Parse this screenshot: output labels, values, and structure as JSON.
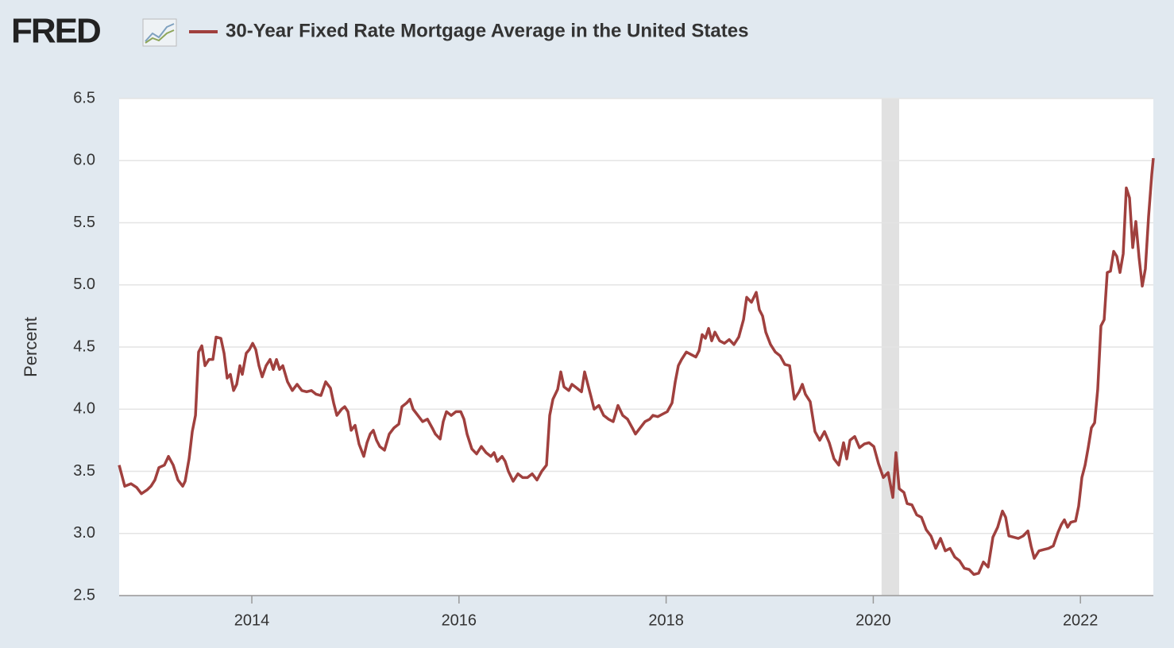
{
  "logo": "FRED",
  "chart_data": {
    "type": "line",
    "title": "30-Year Fixed Rate Mortgage Average in the United States",
    "ylabel": "Percent",
    "color": "#a0403e",
    "grid": true,
    "xlim": [
      2012.719,
      2022.704
    ],
    "xticks": [
      2014,
      2016,
      2018,
      2020,
      2022
    ],
    "ylim": [
      2.5,
      6.5
    ],
    "yticks": [
      2.5,
      {
        "value": 3,
        "label": "3.0"
      },
      3.5,
      {
        "value": 4,
        "label": "4.0"
      },
      4.5,
      {
        "value": 5,
        "label": "5.0"
      },
      5.5,
      {
        "value": 6,
        "label": "6.0"
      },
      6.5
    ],
    "recessions": [
      [
        2020.08,
        2020.25
      ]
    ],
    "x": [
      2012.719,
      2012.773,
      2012.834,
      2012.888,
      2012.934,
      2012.988,
      2013.026,
      2013.064,
      2013.103,
      2013.156,
      2013.195,
      2013.241,
      2013.287,
      2013.333,
      2013.356,
      2013.394,
      2013.425,
      2013.456,
      2013.486,
      2013.517,
      2013.548,
      2013.586,
      2013.624,
      2013.655,
      2013.701,
      2013.732,
      2013.762,
      2013.793,
      2013.824,
      2013.854,
      2013.885,
      2013.908,
      2013.946,
      2013.977,
      2014.008,
      2014.038,
      2014.069,
      2014.1,
      2014.138,
      2014.176,
      2014.207,
      2014.238,
      2014.268,
      2014.299,
      2014.345,
      2014.391,
      2014.437,
      2014.483,
      2014.529,
      2014.575,
      2014.621,
      2014.667,
      2014.713,
      2014.759,
      2014.79,
      2014.821,
      2014.867,
      2014.897,
      2014.928,
      2014.959,
      2014.997,
      2015.035,
      2015.081,
      2015.112,
      2015.143,
      2015.173,
      2015.204,
      2015.235,
      2015.281,
      2015.327,
      2015.373,
      2015.419,
      2015.449,
      2015.495,
      2015.526,
      2015.557,
      2015.603,
      2015.649,
      2015.695,
      2015.741,
      2015.772,
      2015.818,
      2015.848,
      2015.879,
      2015.925,
      2015.971,
      2016.017,
      2016.048,
      2016.078,
      2016.124,
      2016.17,
      2016.216,
      2016.262,
      2016.308,
      2016.339,
      2016.37,
      2016.416,
      2016.446,
      2016.477,
      2016.523,
      2016.569,
      2016.615,
      2016.661,
      2016.707,
      2016.753,
      2016.799,
      2016.845,
      2016.876,
      2016.907,
      2016.953,
      2016.983,
      2017.014,
      2017.06,
      2017.091,
      2017.137,
      2017.183,
      2017.213,
      2017.244,
      2017.275,
      2017.305,
      2017.351,
      2017.397,
      2017.443,
      2017.489,
      2017.535,
      2017.581,
      2017.627,
      2017.673,
      2017.704,
      2017.75,
      2017.796,
      2017.842,
      2017.873,
      2017.919,
      2017.965,
      2018.011,
      2018.057,
      2018.088,
      2018.118,
      2018.149,
      2018.195,
      2018.241,
      2018.287,
      2018.318,
      2018.348,
      2018.379,
      2018.41,
      2018.44,
      2018.471,
      2018.517,
      2018.563,
      2018.609,
      2018.655,
      2018.701,
      2018.747,
      2018.778,
      2018.824,
      2018.87,
      2018.9,
      2018.931,
      2018.962,
      2019.008,
      2019.054,
      2019.1,
      2019.146,
      2019.192,
      2019.238,
      2019.284,
      2019.315,
      2019.345,
      2019.391,
      2019.437,
      2019.483,
      2019.529,
      2019.575,
      2019.621,
      2019.667,
      2019.713,
      2019.744,
      2019.775,
      2019.821,
      2019.867,
      2019.913,
      2019.959,
      2020.005,
      2020.051,
      2020.097,
      2020.143,
      2020.189,
      2020.219,
      2020.25,
      2020.296,
      2020.327,
      2020.373,
      2020.419,
      2020.465,
      2020.511,
      2020.557,
      2020.603,
      2020.649,
      2020.695,
      2020.741,
      2020.787,
      2020.833,
      2020.879,
      2020.925,
      2020.971,
      2021.017,
      2021.063,
      2021.109,
      2021.155,
      2021.201,
      2021.247,
      2021.278,
      2021.309,
      2021.355,
      2021.401,
      2021.447,
      2021.493,
      2021.523,
      2021.554,
      2021.6,
      2021.646,
      2021.692,
      2021.738,
      2021.784,
      2021.815,
      2021.845,
      2021.876,
      2021.907,
      2021.953,
      2021.983,
      2022.014,
      2022.045,
      2022.075,
      2022.106,
      2022.137,
      2022.167,
      2022.198,
      2022.229,
      2022.259,
      2022.29,
      2022.321,
      2022.351,
      2022.382,
      2022.413,
      2022.443,
      2022.474,
      2022.505,
      2022.535,
      2022.566,
      2022.597,
      2022.627,
      2022.658,
      2022.689,
      2022.704
    ],
    "values": [
      3.55,
      3.38,
      3.4,
      3.37,
      3.32,
      3.35,
      3.38,
      3.43,
      3.53,
      3.55,
      3.62,
      3.55,
      3.43,
      3.38,
      3.42,
      3.6,
      3.82,
      3.95,
      4.46,
      4.51,
      4.35,
      4.4,
      4.4,
      4.58,
      4.57,
      4.45,
      4.25,
      4.28,
      4.15,
      4.2,
      4.35,
      4.28,
      4.45,
      4.48,
      4.53,
      4.48,
      4.35,
      4.26,
      4.35,
      4.4,
      4.32,
      4.4,
      4.32,
      4.35,
      4.22,
      4.15,
      4.2,
      4.15,
      4.14,
      4.15,
      4.12,
      4.11,
      4.22,
      4.17,
      4.05,
      3.95,
      4.0,
      4.02,
      3.98,
      3.83,
      3.87,
      3.72,
      3.62,
      3.73,
      3.8,
      3.83,
      3.75,
      3.7,
      3.67,
      3.8,
      3.85,
      3.88,
      4.02,
      4.05,
      4.08,
      4.0,
      3.95,
      3.9,
      3.92,
      3.85,
      3.8,
      3.76,
      3.9,
      3.98,
      3.95,
      3.98,
      3.98,
      3.92,
      3.8,
      3.68,
      3.64,
      3.7,
      3.65,
      3.62,
      3.65,
      3.58,
      3.62,
      3.58,
      3.5,
      3.42,
      3.48,
      3.45,
      3.45,
      3.48,
      3.43,
      3.5,
      3.55,
      3.95,
      4.08,
      4.16,
      4.3,
      4.18,
      4.15,
      4.2,
      4.17,
      4.14,
      4.3,
      4.2,
      4.1,
      4.0,
      4.03,
      3.95,
      3.92,
      3.9,
      4.03,
      3.95,
      3.92,
      3.85,
      3.8,
      3.85,
      3.9,
      3.92,
      3.95,
      3.94,
      3.96,
      3.98,
      4.05,
      4.22,
      4.35,
      4.4,
      4.46,
      4.44,
      4.42,
      4.47,
      4.6,
      4.57,
      4.65,
      4.55,
      4.62,
      4.55,
      4.53,
      4.56,
      4.52,
      4.58,
      4.72,
      4.9,
      4.86,
      4.94,
      4.8,
      4.75,
      4.62,
      4.52,
      4.46,
      4.43,
      4.36,
      4.35,
      4.08,
      4.14,
      4.2,
      4.12,
      4.06,
      3.82,
      3.75,
      3.82,
      3.73,
      3.6,
      3.55,
      3.73,
      3.6,
      3.75,
      3.78,
      3.69,
      3.72,
      3.73,
      3.7,
      3.56,
      3.45,
      3.49,
      3.29,
      3.65,
      3.36,
      3.33,
      3.24,
      3.23,
      3.15,
      3.13,
      3.03,
      2.98,
      2.88,
      2.96,
      2.86,
      2.88,
      2.81,
      2.78,
      2.72,
      2.71,
      2.67,
      2.68,
      2.77,
      2.73,
      2.97,
      3.05,
      3.18,
      3.13,
      2.98,
      2.97,
      2.96,
      2.98,
      3.02,
      2.9,
      2.8,
      2.86,
      2.87,
      2.88,
      2.9,
      3.01,
      3.07,
      3.11,
      3.05,
      3.09,
      3.1,
      3.22,
      3.45,
      3.55,
      3.69,
      3.85,
      3.89,
      4.16,
      4.67,
      4.72,
      5.1,
      5.11,
      5.27,
      5.23,
      5.1,
      5.25,
      5.78,
      5.7,
      5.3,
      5.51,
      5.22,
      4.99,
      5.13,
      5.55,
      5.89,
      6.02
    ]
  }
}
